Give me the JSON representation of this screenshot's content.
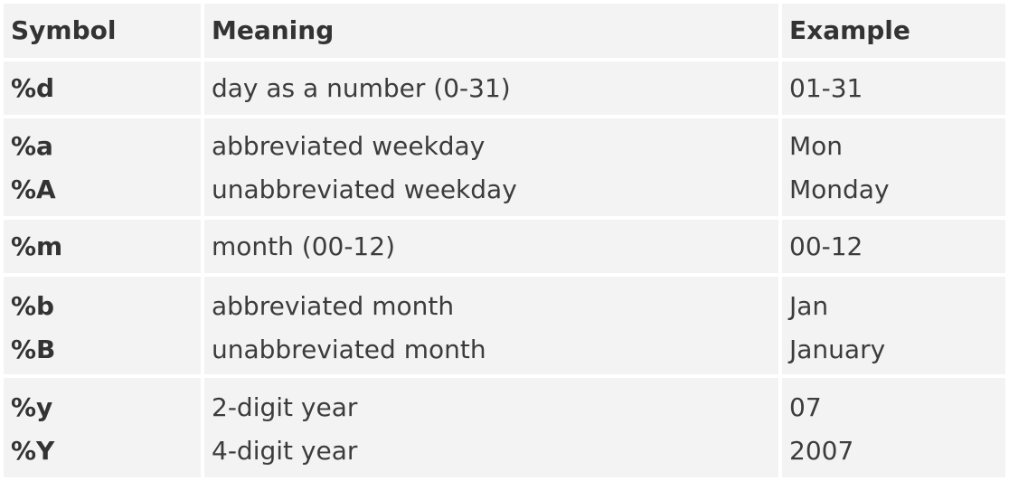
{
  "table": {
    "headers": [
      "Symbol",
      "Meaning",
      "Example"
    ],
    "rows": [
      {
        "symbols": [
          "%d"
        ],
        "meanings": [
          "day as a number (0-31)"
        ],
        "examples": [
          "01-31"
        ]
      },
      {
        "symbols": [
          "%a",
          "%A"
        ],
        "meanings": [
          "abbreviated weekday",
          "unabbreviated weekday"
        ],
        "examples": [
          "Mon",
          "Monday"
        ]
      },
      {
        "symbols": [
          "%m"
        ],
        "meanings": [
          "month (00-12)"
        ],
        "examples": [
          "00-12"
        ]
      },
      {
        "symbols": [
          "%b",
          "%B"
        ],
        "meanings": [
          "abbreviated month",
          "unabbreviated month"
        ],
        "examples": [
          "Jan",
          "January"
        ]
      },
      {
        "symbols": [
          "%y",
          "%Y"
        ],
        "meanings": [
          "2-digit year",
          "4-digit year"
        ],
        "examples": [
          "07",
          "2007"
        ]
      }
    ]
  }
}
